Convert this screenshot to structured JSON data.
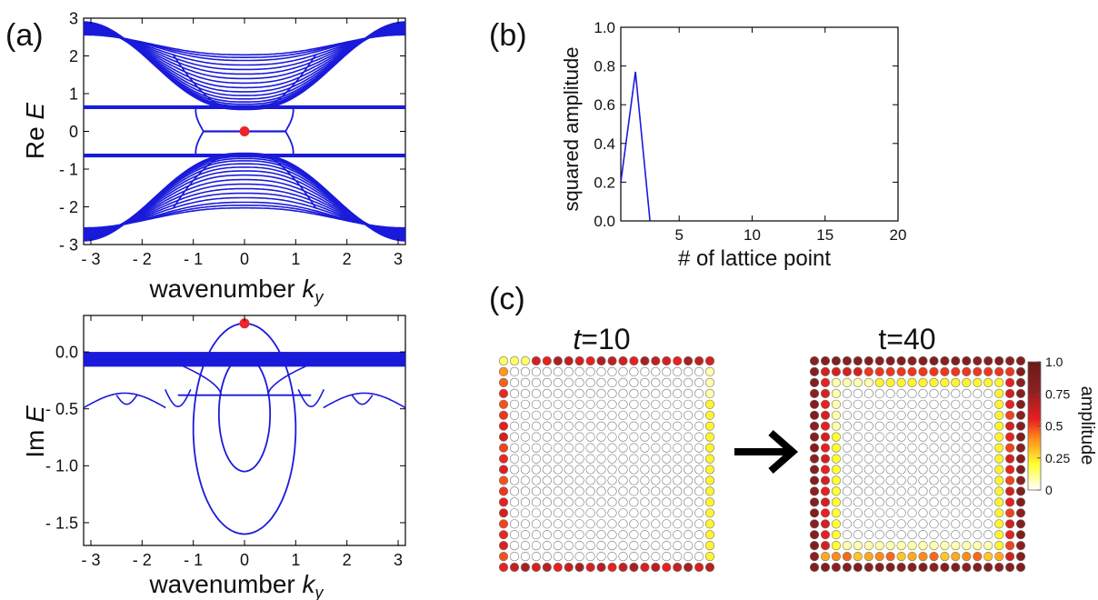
{
  "panel_labels": {
    "a": "(a)",
    "b": "(b)",
    "c": "(c)"
  },
  "chart_data": [
    {
      "id": "re_spectrum",
      "type": "line",
      "ylabel_prefix": "Re ",
      "ylabel_var": "E",
      "xlabel_prefix": "wavenumber ",
      "xlabel_var": "k",
      "xlabel_sub": "y",
      "xlim": [
        -3.14159,
        3.14159
      ],
      "ylim": [
        -3,
        3
      ],
      "xticks": [
        -3,
        -2,
        -1,
        0,
        1,
        2,
        3
      ],
      "xtick_labels": [
        "- 3",
        "- 2",
        "- 1",
        "0",
        "1",
        "2",
        "3"
      ],
      "yticks": [
        -3,
        -2,
        -1,
        0,
        1,
        2,
        3
      ],
      "ytick_labels": [
        "- 3",
        "- 2",
        "- 1",
        "0",
        "1",
        "2",
        "3"
      ],
      "bands_upper_min": [
        0.58,
        0.6,
        0.63,
        0.67,
        0.72,
        0.78,
        0.86,
        0.95,
        1.05,
        1.16,
        1.28,
        1.4,
        1.52,
        1.64,
        1.76,
        1.88,
        1.96,
        2.03
      ],
      "bands_upper_max": [
        2.9,
        2.88,
        2.86,
        2.84,
        2.82,
        2.8,
        2.78,
        2.76,
        2.74,
        2.72,
        2.7,
        2.68,
        2.66,
        2.64,
        2.62,
        2.6,
        2.58,
        2.56
      ],
      "bands_lower_min": [
        -0.58,
        -0.6,
        -0.63,
        -0.67,
        -0.72,
        -0.78,
        -0.86,
        -0.95,
        -1.05,
        -1.16,
        -1.28,
        -1.4,
        -1.52,
        -1.64,
        -1.76,
        -1.88,
        -1.96,
        -2.03
      ],
      "bands_lower_max": [
        -2.9,
        -2.88,
        -2.86,
        -2.84,
        -2.82,
        -2.8,
        -2.78,
        -2.76,
        -2.74,
        -2.72,
        -2.7,
        -2.68,
        -2.66,
        -2.64,
        -2.62,
        -2.6,
        -2.58,
        -2.56
      ],
      "flat_edge_bands": [
        0.62,
        0.66,
        -0.62,
        -0.66
      ],
      "zero_mode_kx": [
        -0.8,
        0.8
      ],
      "marker": {
        "x": 0,
        "y": 0,
        "color": "#e8262b"
      },
      "line_color": "#1a1adb"
    },
    {
      "id": "im_spectrum",
      "type": "line",
      "ylabel_prefix": "Im ",
      "ylabel_var": "E",
      "xlabel_prefix": "wavenumber ",
      "xlabel_var": "k",
      "xlabel_sub": "y",
      "xlim": [
        -3.14159,
        3.14159
      ],
      "ylim": [
        -1.7,
        0.32
      ],
      "xticks": [
        -3,
        -2,
        -1,
        0,
        1,
        2,
        3
      ],
      "xtick_labels": [
        "- 3",
        "- 2",
        "- 1",
        "0",
        "1",
        "2",
        "3"
      ],
      "yticks": [
        0.0,
        -0.5,
        -1.0,
        -1.5
      ],
      "ytick_labels": [
        "0.0",
        "- 0.5",
        "- 1.0",
        "- 1.5"
      ],
      "bulk_band": [
        -0.13,
        0.0
      ],
      "outer_loop": {
        "top": 0.25,
        "bottom": -1.6,
        "half_width": 1.0
      },
      "inner_loop": {
        "top": -0.04,
        "bottom": -1.05,
        "half_width": 0.5
      },
      "branch_level_a": -0.33,
      "branch_level_b": -0.49,
      "branch_level_c": -0.38,
      "marker": {
        "x": 0,
        "y": 0.25,
        "color": "#e8262b"
      },
      "line_color": "#1a1adb"
    },
    {
      "id": "amplitude_profile",
      "type": "line",
      "ylabel": "squared amplitude",
      "xlabel": "# of lattice point",
      "xlim": [
        1,
        20
      ],
      "ylim": [
        0,
        1
      ],
      "xticks": [
        5,
        10,
        15,
        20
      ],
      "xtick_labels": [
        "5",
        "10",
        "15",
        "20"
      ],
      "yticks": [
        0.0,
        0.2,
        0.4,
        0.6,
        0.8,
        1.0
      ],
      "ytick_labels": [
        "0.0",
        "0.2",
        "0.4",
        "0.6",
        "0.8",
        "1.0"
      ],
      "x": [
        1,
        2,
        3
      ],
      "y": [
        0.2,
        0.77,
        0.0
      ],
      "line_color": "#1a1adb"
    },
    {
      "id": "amplitude_maps",
      "type": "heatmap",
      "grid_size": 20,
      "colorbar": {
        "label": "amplitude",
        "tick_labels": [
          "1.0",
          "0.75",
          "0.5",
          "0.25",
          "0"
        ],
        "ticks": [
          1.0,
          0.75,
          0.5,
          0.25,
          0
        ],
        "stops": [
          "#ffffff",
          "#ffff33",
          "#ff8c1a",
          "#e82020",
          "#8a2020",
          "#6b1a1a"
        ]
      },
      "maps": [
        {
          "title_var": "t",
          "title_rest": "=10",
          "italic": true
        },
        {
          "title_var": "",
          "title_rest": "t=40",
          "italic": false
        }
      ]
    }
  ]
}
